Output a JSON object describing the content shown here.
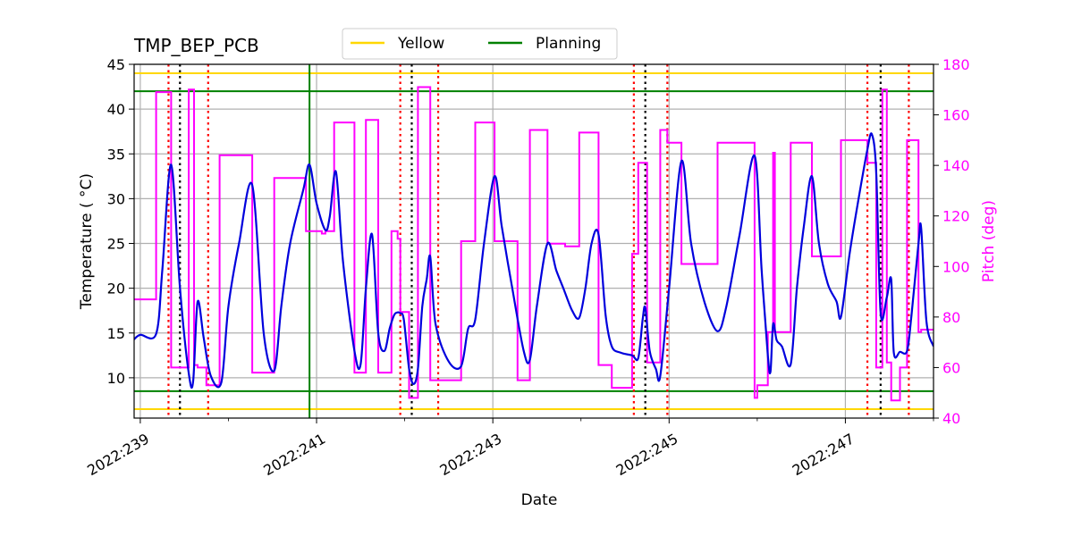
{
  "chart_data": {
    "type": "line",
    "title": "TMP_BEP_PCB",
    "xlabel": "Date",
    "ylabel_left": "Temperature ($^\\circ$C)",
    "ylabel_left_display": "Temperature ( °C)",
    "ylabel_right": "Pitch (deg)",
    "x_range": [
      238.93,
      248.0
    ],
    "x_ticks": [
      239,
      241,
      243,
      245,
      247
    ],
    "x_tick_labels": [
      "2022:239",
      "2022:241",
      "2022:243",
      "2022:245",
      "2022:247"
    ],
    "ylim_left": [
      5.5,
      45
    ],
    "y_ticks_left": [
      10,
      15,
      20,
      25,
      30,
      35,
      40,
      45
    ],
    "ylim_right": [
      40,
      180
    ],
    "y_ticks_right": [
      40,
      60,
      80,
      100,
      120,
      140,
      160,
      180
    ],
    "legend": [
      {
        "label": "Yellow",
        "color": "#ffd700"
      },
      {
        "label": "Planning",
        "color": "#008000"
      }
    ],
    "colors": {
      "temperature": "#0000dd",
      "pitch": "#ff00ff",
      "yellow": "#ffd700",
      "planning": "#008000",
      "red_marker": "#ff0000",
      "black_marker": "#000000",
      "grid": "#b0b0b0"
    },
    "yellow_limits": [
      44,
      6.5
    ],
    "planning_limits": [
      42,
      8.5
    ],
    "planning_vertical_x": 240.92,
    "red_markers_x": [
      239.32,
      239.77,
      241.95,
      242.38,
      244.6,
      244.98,
      247.25,
      247.72
    ],
    "black_markers_x": [
      239.45,
      242.08,
      244.73,
      247.4
    ],
    "pitch_series": {
      "name": "Pitch",
      "x": [
        238.93,
        239.18,
        239.18,
        239.35,
        239.35,
        239.55,
        239.55,
        239.61,
        239.61,
        239.65,
        239.65,
        239.75,
        239.75,
        239.9,
        239.9,
        240.27,
        240.27,
        240.52,
        240.52,
        240.88,
        240.88,
        241.06,
        241.06,
        241.1,
        241.1,
        241.2,
        241.2,
        241.43,
        241.43,
        241.56,
        241.56,
        241.7,
        241.7,
        241.85,
        241.85,
        241.92,
        241.92,
        241.95,
        241.95,
        242.05,
        242.05,
        242.15,
        242.15,
        242.29,
        242.29,
        242.64,
        242.64,
        242.8,
        242.8,
        243.02,
        243.02,
        243.28,
        243.28,
        243.42,
        243.42,
        243.62,
        243.62,
        243.82,
        243.82,
        243.98,
        243.98,
        244.2,
        244.2,
        244.35,
        244.35,
        244.58,
        244.58,
        244.65,
        244.65,
        244.75,
        244.75,
        244.9,
        244.9,
        244.98,
        244.98,
        245.14,
        245.14,
        245.55,
        245.55,
        245.97,
        245.97,
        246.0,
        246.0,
        246.12,
        246.12,
        246.18,
        246.18,
        246.2,
        246.2,
        246.38,
        246.38,
        246.62,
        246.62,
        246.95,
        246.95,
        247.25,
        247.25,
        247.35,
        247.35,
        247.42,
        247.42,
        247.47,
        247.47,
        247.52,
        247.52,
        247.62,
        247.62,
        247.7,
        247.7,
        247.83,
        247.83,
        247.86,
        247.86,
        248.0
      ],
      "y": [
        87,
        87,
        169,
        169,
        60,
        60,
        170,
        170,
        61,
        61,
        60,
        60,
        53,
        53,
        144,
        144,
        58,
        58,
        135,
        135,
        114,
        114,
        113,
        113,
        114,
        114,
        157,
        157,
        58,
        58,
        158,
        158,
        58,
        58,
        114,
        114,
        111,
        111,
        82,
        82,
        48,
        48,
        171,
        171,
        55,
        55,
        110,
        110,
        157,
        157,
        110,
        110,
        55,
        55,
        154,
        154,
        109,
        109,
        108,
        108,
        153,
        153,
        61,
        61,
        52,
        52,
        105,
        105,
        141,
        141,
        62,
        62,
        154,
        154,
        149,
        149,
        101,
        101,
        149,
        149,
        48,
        48,
        53,
        53,
        74,
        74,
        145,
        145,
        74,
        74,
        149,
        149,
        104,
        104,
        150,
        150,
        141,
        141,
        60,
        60,
        170,
        170,
        62,
        62,
        47,
        47,
        60,
        60,
        150,
        150,
        74,
        74,
        75,
        75
      ]
    },
    "temperature_series": {
      "name": "TMP_BEP_PCB",
      "x": [
        238.93,
        239.0,
        239.18,
        239.25,
        239.35,
        239.45,
        239.55,
        239.6,
        239.65,
        239.72,
        239.8,
        239.92,
        240.0,
        240.12,
        240.27,
        240.4,
        240.52,
        240.6,
        240.7,
        240.85,
        240.92,
        241.0,
        241.1,
        241.15,
        241.22,
        241.3,
        241.43,
        241.5,
        241.56,
        241.63,
        241.7,
        241.77,
        241.83,
        241.88,
        241.92,
        241.95,
        241.99,
        242.05,
        242.1,
        242.15,
        242.2,
        242.25,
        242.29,
        242.35,
        242.5,
        242.64,
        242.72,
        242.8,
        242.9,
        243.02,
        243.1,
        243.22,
        243.35,
        243.42,
        243.5,
        243.62,
        243.72,
        243.8,
        243.9,
        243.98,
        244.05,
        244.12,
        244.2,
        244.28,
        244.35,
        244.45,
        244.58,
        244.65,
        244.7,
        244.73,
        244.78,
        244.85,
        244.9,
        245.0,
        245.14,
        245.25,
        245.4,
        245.55,
        245.65,
        245.8,
        245.97,
        246.05,
        246.12,
        246.15,
        246.18,
        246.22,
        246.28,
        246.38,
        246.45,
        246.53,
        246.62,
        246.7,
        246.8,
        246.9,
        246.95,
        247.05,
        247.15,
        247.25,
        247.3,
        247.35,
        247.4,
        247.47,
        247.52,
        247.55,
        247.62,
        247.7,
        247.75,
        247.83,
        247.86,
        247.92,
        248.0
      ],
      "y": [
        14.3,
        14.8,
        14.9,
        22,
        33.8,
        20,
        10.5,
        9.6,
        18.5,
        14.4,
        10.2,
        9.5,
        18,
        25,
        31.5,
        15,
        10.8,
        18,
        25,
        31,
        33.8,
        29.5,
        26.5,
        28,
        33,
        23,
        13,
        11.5,
        20,
        26,
        15,
        13,
        15.5,
        17,
        17.3,
        17.2,
        16.5,
        11,
        9.3,
        11,
        18,
        21,
        23.5,
        16,
        11.8,
        11.3,
        15.5,
        16.5,
        25,
        32.5,
        27,
        20,
        13,
        12,
        18,
        25,
        22,
        20,
        17.5,
        16.7,
        20,
        25,
        26,
        17,
        13.5,
        12.8,
        12.5,
        12.2,
        16.5,
        17.8,
        13,
        11,
        10.2,
        20,
        34.2,
        25,
        18.5,
        15.2,
        18,
        26,
        34.8,
        22,
        12.5,
        10.7,
        16,
        14.2,
        13.5,
        11.5,
        20,
        27,
        32.5,
        25,
        20.5,
        18.5,
        16.8,
        24,
        30,
        35.5,
        37.2,
        33,
        17.2,
        19,
        21,
        12.8,
        12.9,
        13,
        17,
        25,
        26.7,
        16.3,
        13.5
      ]
    }
  }
}
